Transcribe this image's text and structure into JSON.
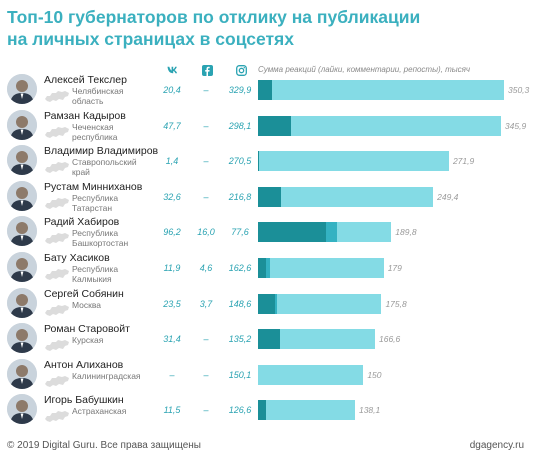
{
  "title_line1": "Топ-10 губернаторов по отклику на публикации",
  "title_line2": "на личных страницах в соцсетях",
  "header": {
    "vk_icon": "vk-icon",
    "fb_icon": "facebook-icon",
    "ig_icon": "instagram-icon",
    "axis_caption": "Сумма реакций (лайки, комментарии, репосты), тысяч"
  },
  "colors": {
    "title": "#3bb0bf",
    "vk_segment": "#1b8f98",
    "fb_segment": "#34b2c2",
    "ig_segment": "#84dbe5"
  },
  "chart_data": {
    "type": "bar",
    "orientation": "horizontal",
    "stacked": true,
    "categories": [
      "Алексей Текслер",
      "Рамзан Кадыров",
      "Владимир Владимиров",
      "Рустам Минниханов",
      "Радий Хабиров",
      "Бату Хасиков",
      "Сергей Собянин",
      "Роман Старовойт",
      "Антон Алиханов",
      "Игорь Бабушкин"
    ],
    "regions": [
      [
        "Челябинская",
        "область"
      ],
      [
        "Чеченская",
        "республика"
      ],
      [
        "Ставропольский",
        "край"
      ],
      [
        "Республика",
        "Татарстан"
      ],
      [
        "Республика",
        "Башкортостан"
      ],
      [
        "Республика",
        "Калмыкия"
      ],
      [
        "Москва"
      ],
      [
        "Курская"
      ],
      [
        "Калининградская"
      ],
      [
        "Астраханская"
      ]
    ],
    "series": [
      {
        "values": [
          20.4,
          47.7,
          1.4,
          32.6,
          96.2,
          11.9,
          23.5,
          31.4,
          null,
          11.5
        ]
      },
      {
        "values": [
          null,
          null,
          null,
          null,
          16.0,
          4.6,
          3.7,
          null,
          null,
          null
        ]
      },
      {
        "values": [
          329.9,
          298.1,
          270.5,
          216.8,
          77.6,
          162.6,
          148.6,
          135.2,
          150.1,
          126.6
        ]
      }
    ],
    "column_text": {
      "vk": [
        "20,4",
        "47,7",
        "1,4",
        "32,6",
        "96,2",
        "11,9",
        "23,5",
        "31,4",
        "–",
        "11,5"
      ],
      "fb": [
        "–",
        "–",
        "–",
        "–",
        "16,0",
        "4,6",
        "3,7",
        "–",
        "–",
        "–"
      ],
      "ig": [
        "329,9",
        "298,1",
        "270,5",
        "216,8",
        "77,6",
        "162,6",
        "148,6",
        "135,2",
        "150,1",
        "126,6"
      ]
    },
    "totals": [
      350.3,
      345.9,
      271.9,
      249.4,
      189.8,
      179,
      175.8,
      166.6,
      150,
      138.1
    ],
    "totals_text": [
      "350,3",
      "345,9",
      "271,9",
      "249,4",
      "189,8",
      "179",
      "175,8",
      "166,6",
      "150",
      "138,1"
    ],
    "xlim": [
      0,
      350.3
    ],
    "grid": false,
    "legend": "none"
  },
  "footer": {
    "copyright": "© 2019 Digital Guru. Все права защищены",
    "site": "dgagency.ru"
  }
}
